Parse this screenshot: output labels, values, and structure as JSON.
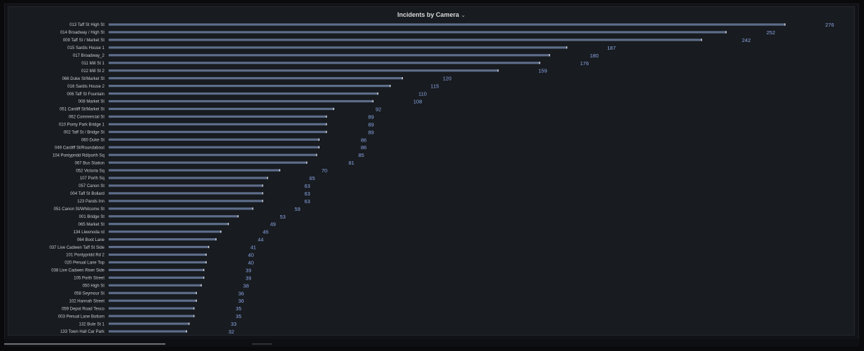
{
  "panel": {
    "title": "Incidents by Camera",
    "menu_icon": "chevron-down-icon"
  },
  "colors": {
    "bar": "#5d6d8a",
    "bar_end": "#c7ccd6",
    "value": "#8aa6e6",
    "label": "#c9ccd1"
  },
  "chart_data": {
    "type": "bar",
    "orientation": "horizontal",
    "title": "Incidents by Camera",
    "xlim": [
      0,
      276
    ],
    "categories": [
      "013 Taff St High St",
      "014 Broadway / High St",
      "009 Taff St / Market St",
      "015 Sardis House 1",
      "017 Broadway_2",
      "011 Mill St 1",
      "012 Mill St 2",
      "066 Duke St/Market St",
      "016 Sardis House 2",
      "006 Taff St Fountain",
      "008 Market St",
      "051 Cardiff St/Market St",
      "062 Commercial St",
      "010 Ponty Park Bridge 1",
      "002 Taff St / Bridge St",
      "060 Duke St",
      "049 Cardiff St/Roundabout",
      "104 Pontypridd Rd/porth Sq",
      "067 Bus Station",
      "052 Victoria Sq",
      "107 Porth Sq",
      "057 Canon St",
      "004 Taff St Bollard",
      "123 Pands Inn",
      "051 Canon St/Whitcome St",
      "001 Bridge St",
      "065 Market St",
      "134 Llewnoda rd",
      "064 Boot Lane",
      "037 Live Cadwen Taff St Side",
      "101 Pontypridd Rd 2",
      "020 Penual Lane Top",
      "038 Live Cadwen River Side",
      "105 Porth Street",
      "050 High St",
      "058 Seymour St",
      "102 Hannah Street",
      "059 Depot Road Tesco",
      "003 Penual Lane Bottom",
      "132 Bute St 1",
      "133 Town Hall Car Park"
    ],
    "values": [
      276,
      252,
      242,
      187,
      180,
      176,
      159,
      120,
      115,
      110,
      108,
      92,
      89,
      89,
      89,
      86,
      86,
      85,
      81,
      70,
      65,
      63,
      63,
      63,
      59,
      53,
      49,
      46,
      44,
      41,
      40,
      40,
      39,
      39,
      38,
      36,
      36,
      35,
      35,
      33,
      32
    ]
  }
}
